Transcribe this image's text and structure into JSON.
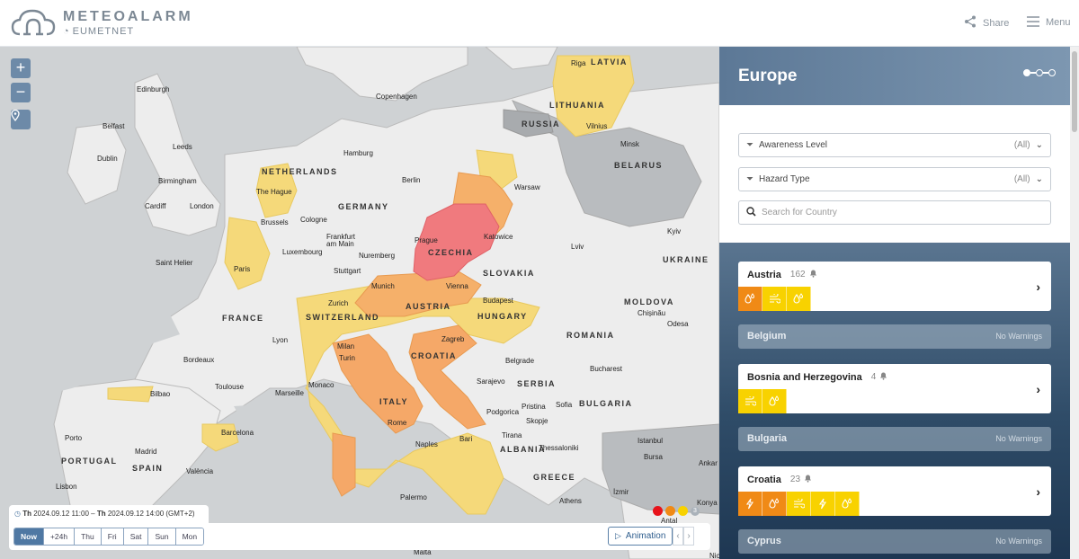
{
  "header": {
    "brand_title": "METEOALARM",
    "brand_sub": "EUMETNET",
    "share_label": "Share",
    "menu_label": "Menu"
  },
  "map": {
    "zoom_in": "+",
    "zoom_out": "−",
    "labels": {
      "latvia": "LATVIA",
      "riga": "Riga",
      "lithuania": "LITHUANIA",
      "vilnius": "Vilnius",
      "russia": "RUSSIA",
      "minsk": "Minsk",
      "belarus": "BELARUS",
      "edinburgh": "Edinburgh",
      "copenhagen": "Copenhagen",
      "belfast": "Belfast",
      "leeds": "Leeds",
      "dublin": "Dublin",
      "hamburg": "Hamburg",
      "netherlands": "NETHERLANDS",
      "birmingham": "Birmingham",
      "berlin": "Berlin",
      "warsaw": "Warsaw",
      "thehague": "The Hague",
      "cardiff": "Cardiff",
      "london": "London",
      "germany": "GERMANY",
      "brussels": "Brussels",
      "cologne": "Cologne",
      "frankfurt": "Frankfurt",
      "ammain": "am Main",
      "prague": "Prague",
      "czechia": "CZECHIA",
      "katowice": "Katowice",
      "kyiv": "Kyiv",
      "luxembourg": "Luxembourg",
      "nuremberg": "Nuremberg",
      "lviv": "Lviv",
      "ukraine": "UKRAINE",
      "sainthelier": "Saint Helier",
      "paris": "Paris",
      "stuttgart": "Stuttgart",
      "slovakia": "SLOVAKIA",
      "munich": "Munich",
      "vienna": "Vienna",
      "zurich": "Zurich",
      "budapest": "Budapest",
      "moldova": "MOLDOVA",
      "chisinau": "Chișinău",
      "france": "FRANCE",
      "switzerland": "SWITZERLAND",
      "austria": "AUSTRIA",
      "hungary": "HUNGARY",
      "odesa": "Odesa",
      "lyon": "Lyon",
      "milan": "Milan",
      "zagreb": "Zagreb",
      "romania": "ROMANIA",
      "bordeaux": "Bordeaux",
      "turin": "Turin",
      "croatia": "CROATIA",
      "belgrade": "Belgrade",
      "bucharest": "Bucharest",
      "toulouse": "Toulouse",
      "monaco": "Monaco",
      "marseille": "Marseille",
      "sarajevo": "Sarajevo",
      "serbia": "SERBIA",
      "bilbao": "Bilbao",
      "italy": "ITALY",
      "pristina": "Pristina",
      "sofia": "Sofia",
      "bulgaria": "BULGARIA",
      "podgorica": "Podgorica",
      "skopje": "Skopje",
      "rome": "Rome",
      "porto": "Porto",
      "barcelona": "Barcelona",
      "tirana": "Tirana",
      "bari": "Bari",
      "naples": "Naples",
      "istanbul": "Istanbul",
      "madrid": "Madrid",
      "albania": "ALBANIA",
      "thessaloniki": "Thessaloniki",
      "bursa": "Bursa",
      "portugal": "PORTUGAL",
      "spain": "SPAIN",
      "valencia": "València",
      "greece": "GREECE",
      "ankara": "Ankar",
      "lisbon": "Lisbon",
      "izmir": "İzmir",
      "palermo": "Palermo",
      "athens": "Athens",
      "konya": "Konya",
      "antalya": "Antal",
      "malta": "Malta",
      "nic": "Nic"
    }
  },
  "timebar": {
    "day_from": "Th",
    "from": "2024.09.12 11:00",
    "sep": "–",
    "day_to": "Th",
    "to": "2024.09.12 14:00 (GMT+2)",
    "days": [
      "Now",
      "+24h",
      "Thu",
      "Fri",
      "Sat",
      "Sun",
      "Mon"
    ],
    "active_index": 0,
    "animation_label": "Animation",
    "legend_count": "3",
    "legend_colors": [
      "#e8131b",
      "#f08a16",
      "#f8d200"
    ]
  },
  "panel": {
    "title": "Europe",
    "awareness_label": "Awareness Level",
    "awareness_value": "(All)",
    "hazard_label": "Hazard Type",
    "hazard_value": "(All)",
    "search_placeholder": "Search for Country",
    "no_warnings_label": "No Warnings",
    "countries": [
      {
        "name": "Austria",
        "count": "162",
        "icons": [
          {
            "name": "rain-icon",
            "level": "orange"
          },
          {
            "name": "wind-icon",
            "level": "yellow"
          },
          {
            "name": "rain-icon",
            "level": "yellow"
          }
        ]
      },
      {
        "name": "Belgium"
      },
      {
        "name": "Bosnia and Herzegovina",
        "count": "4",
        "icons": [
          {
            "name": "wind-icon",
            "level": "yellow"
          },
          {
            "name": "rain-icon",
            "level": "yellow"
          }
        ]
      },
      {
        "name": "Bulgaria"
      },
      {
        "name": "Croatia",
        "count": "23",
        "icons": [
          {
            "name": "thunderstorm-icon",
            "level": "orange"
          },
          {
            "name": "rain-icon",
            "level": "orange"
          },
          {
            "name": "wind-icon",
            "level": "yellow"
          },
          {
            "name": "thunderstorm-icon",
            "level": "yellow"
          },
          {
            "name": "rain-icon",
            "level": "yellow"
          }
        ]
      },
      {
        "name": "Cyprus"
      }
    ]
  }
}
